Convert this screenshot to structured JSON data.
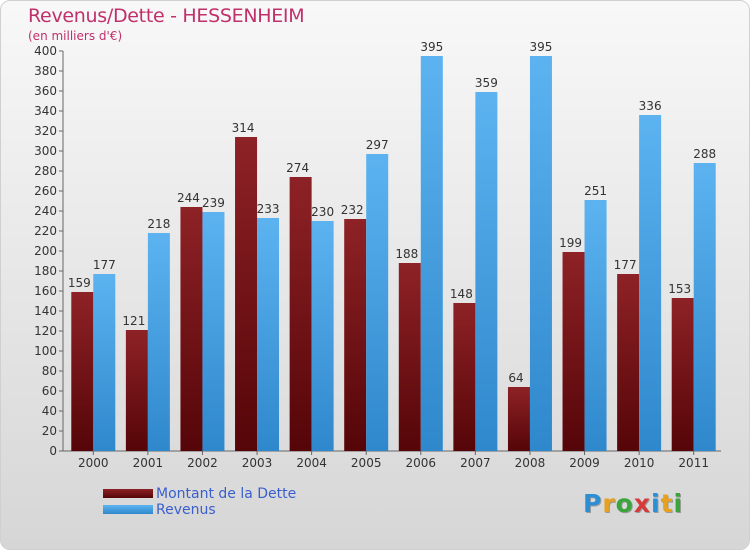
{
  "header": {
    "title": "Revenus/Dette - HESSENHEIM",
    "subtitle": "(en milliers d'€)"
  },
  "legend": {
    "debt_label": "Montant de la Dette",
    "revenue_label": "Revenus"
  },
  "logo": {
    "text": "Proxiti"
  },
  "colors": {
    "debt": "#7a1418",
    "debt_dark": "#4a0508",
    "revenue": "#4da6e8",
    "revenue_dark": "#2d86c8",
    "title": "#c0306a",
    "legend_text": "#3a5fcd"
  },
  "chart_data": {
    "type": "bar",
    "title": "Revenus/Dette - HESSENHEIM",
    "subtitle": "(en milliers d'€)",
    "categories": [
      "2000",
      "2001",
      "2002",
      "2003",
      "2004",
      "2005",
      "2006",
      "2007",
      "2008",
      "2009",
      "2010",
      "2011"
    ],
    "series": [
      {
        "name": "Montant de la Dette",
        "values": [
          159,
          121,
          244,
          314,
          274,
          232,
          188,
          148,
          64,
          199,
          177,
          153
        ]
      },
      {
        "name": "Revenus",
        "values": [
          177,
          218,
          239,
          233,
          230,
          297,
          395,
          359,
          395,
          251,
          336,
          288
        ]
      }
    ],
    "ylim": [
      0,
      400
    ],
    "ytick_step": 20,
    "grid": false,
    "legend_position": "bottom-left"
  }
}
